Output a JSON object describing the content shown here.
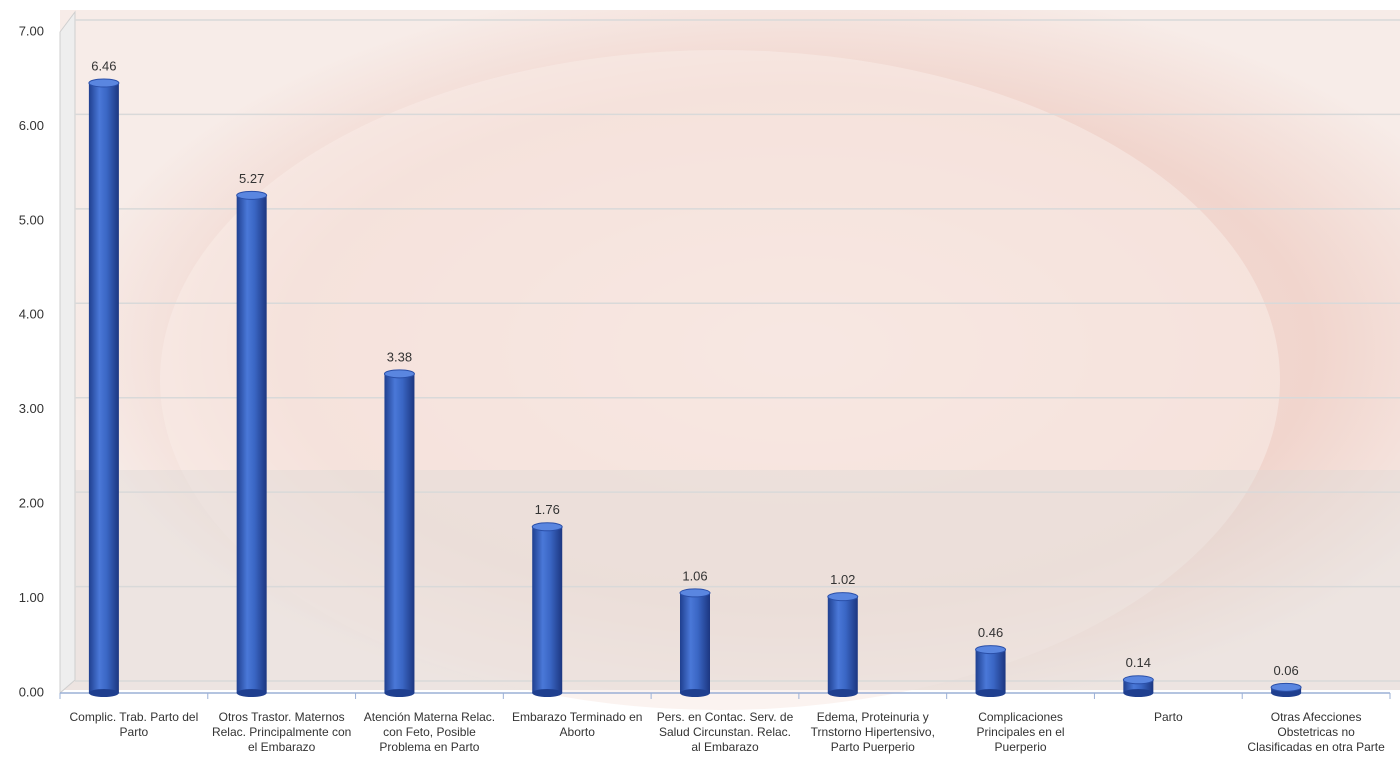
{
  "chart_data": {
    "type": "bar",
    "categories": [
      "Complic. Trab. Parto del Parto",
      "Otros Trastor. Maternos Relac. Principalmente con el Embarazo",
      "Atención Materna Relac. con Feto, Posible Problema en Parto",
      "Embarazo Terminado en Aborto",
      "Pers. en Contac. Serv. de Salud Circunstan. Relac. al Embarazo",
      "Edema, Proteinuria y Trnstorno Hipertensivo, Parto Puerperio",
      "Complicaciones Principales en el Puerperio",
      "Parto",
      "Otras Afecciones Obstetricas no Clasificadas en otra Parte"
    ],
    "values": [
      6.46,
      5.27,
      3.38,
      1.76,
      1.06,
      1.02,
      0.46,
      0.14,
      0.06
    ],
    "color": "#3a66c4",
    "ylim": [
      0,
      7
    ],
    "yticks": [
      {
        "value": 0,
        "label": "0.00"
      },
      {
        "value": 1,
        "label": "1.00"
      },
      {
        "value": 2,
        "label": "2.00"
      },
      {
        "value": 3,
        "label": "3.00"
      },
      {
        "value": 4,
        "label": "4.00"
      },
      {
        "value": 5,
        "label": "5.00"
      },
      {
        "value": 6,
        "label": "6.00"
      },
      {
        "value": 7,
        "label": "7.00"
      }
    ],
    "grid": true
  }
}
